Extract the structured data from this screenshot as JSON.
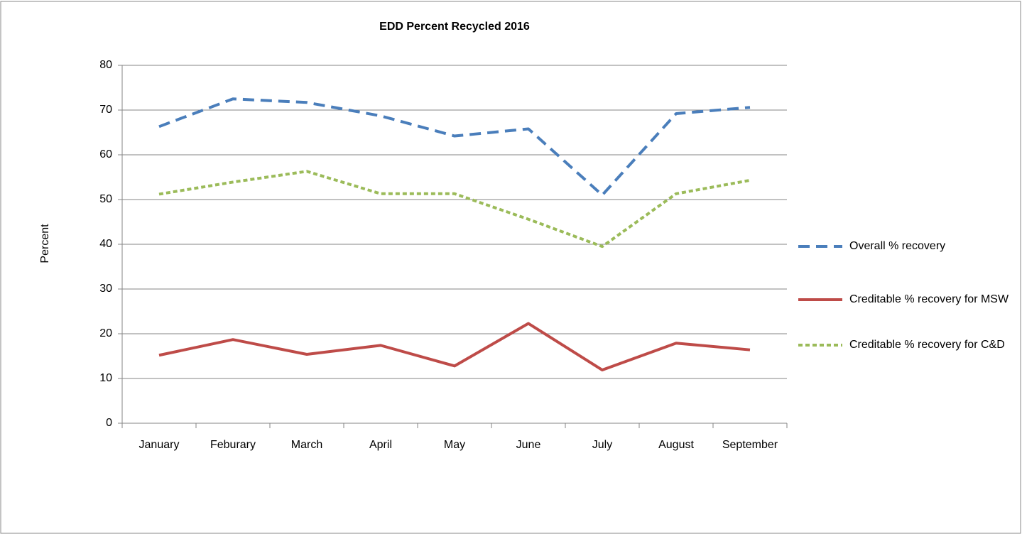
{
  "chart_data": {
    "type": "line",
    "title": "EDD Percent Recycled 2016",
    "y_label": "Percent",
    "categories": [
      "January",
      "Feburary",
      "March",
      "April",
      "May",
      "June",
      "July",
      "August",
      "September"
    ],
    "series": [
      {
        "name": "Overall % recovery",
        "color": "#4a7ebb",
        "dash": "dashed",
        "values": [
          66.3,
          72.5,
          71.7,
          68.7,
          64.2,
          65.8,
          51.0,
          69.2,
          70.6
        ]
      },
      {
        "name": "Creditable % recovery for MSW",
        "color": "#be4b48",
        "dash": "solid",
        "values": [
          15.2,
          18.7,
          15.4,
          17.4,
          12.8,
          22.3,
          11.9,
          17.9,
          16.4
        ]
      },
      {
        "name": "Creditable % recovery for C&D",
        "color": "#9bbb59",
        "dash": "dotted",
        "values": [
          51.2,
          53.9,
          56.3,
          51.3,
          51.3,
          45.6,
          39.5,
          51.3,
          54.3
        ]
      }
    ],
    "ylim": [
      0,
      80
    ],
    "yticks": [
      0,
      10,
      20,
      30,
      40,
      50,
      60,
      70,
      80
    ],
    "grid": true,
    "legend": "right"
  }
}
